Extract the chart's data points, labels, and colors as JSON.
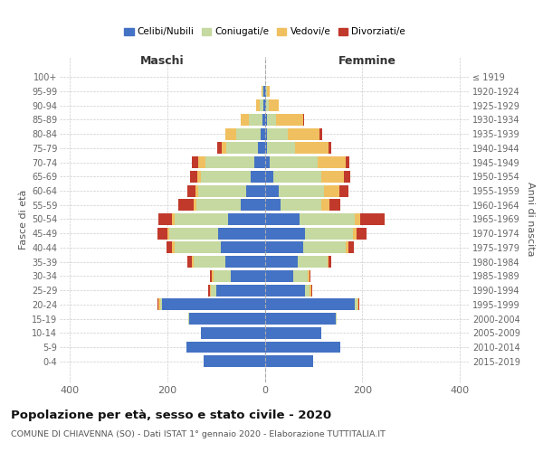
{
  "age_groups": [
    "0-4",
    "5-9",
    "10-14",
    "15-19",
    "20-24",
    "25-29",
    "30-34",
    "35-39",
    "40-44",
    "45-49",
    "50-54",
    "55-59",
    "60-64",
    "65-69",
    "70-74",
    "75-79",
    "80-84",
    "85-89",
    "90-94",
    "95-99",
    "100+"
  ],
  "birth_years": [
    "2015-2019",
    "2010-2014",
    "2005-2009",
    "2000-2004",
    "1995-1999",
    "1990-1994",
    "1985-1989",
    "1980-1984",
    "1975-1979",
    "1970-1974",
    "1965-1969",
    "1960-1964",
    "1955-1959",
    "1950-1954",
    "1945-1949",
    "1940-1944",
    "1935-1939",
    "1930-1934",
    "1925-1929",
    "1920-1924",
    "≤ 1919"
  ],
  "maschi": {
    "celibi": [
      125,
      160,
      130,
      155,
      210,
      100,
      70,
      80,
      90,
      95,
      75,
      50,
      38,
      28,
      22,
      14,
      8,
      5,
      2,
      2,
      0
    ],
    "coniugati": [
      0,
      0,
      0,
      2,
      5,
      10,
      35,
      65,
      95,
      100,
      110,
      90,
      98,
      103,
      100,
      65,
      50,
      28,
      8,
      3,
      0
    ],
    "vedovi": [
      0,
      0,
      0,
      0,
      2,
      3,
      3,
      5,
      5,
      5,
      5,
      5,
      5,
      8,
      15,
      10,
      22,
      16,
      8,
      2,
      0
    ],
    "divorziati": [
      0,
      0,
      0,
      0,
      2,
      3,
      5,
      8,
      12,
      20,
      28,
      32,
      18,
      14,
      12,
      8,
      0,
      0,
      0,
      0,
      0
    ]
  },
  "femmine": {
    "nubili": [
      100,
      155,
      115,
      145,
      185,
      82,
      58,
      68,
      78,
      82,
      72,
      33,
      28,
      18,
      10,
      5,
      5,
      5,
      3,
      2,
      0
    ],
    "coniugate": [
      0,
      0,
      0,
      2,
      5,
      10,
      30,
      60,
      88,
      98,
      112,
      83,
      93,
      98,
      98,
      58,
      42,
      18,
      5,
      3,
      0
    ],
    "vedove": [
      0,
      0,
      0,
      0,
      2,
      3,
      3,
      3,
      5,
      8,
      12,
      16,
      32,
      46,
      58,
      68,
      65,
      55,
      20,
      5,
      0
    ],
    "divorziate": [
      0,
      0,
      0,
      0,
      2,
      3,
      3,
      5,
      12,
      20,
      50,
      23,
      18,
      14,
      8,
      5,
      5,
      3,
      0,
      0,
      0
    ]
  },
  "colors": {
    "celibi": "#4472c4",
    "coniugati": "#c5d9a0",
    "vedovi": "#f0c060",
    "divorziati": "#c0392b"
  },
  "title": "Popolazione per età, sesso e stato civile - 2020",
  "subtitle": "COMUNE DI CHIAVENNA (SO) - Dati ISTAT 1° gennaio 2020 - Elaborazione TUTTITALIA.IT",
  "xlabel_left": "Maschi",
  "xlabel_right": "Femmine",
  "ylabel_left": "Fasce di età",
  "ylabel_right": "Anni di nascita",
  "xlim": 420,
  "bg_color": "#ffffff",
  "grid_color": "#cccccc",
  "bar_height": 0.82
}
